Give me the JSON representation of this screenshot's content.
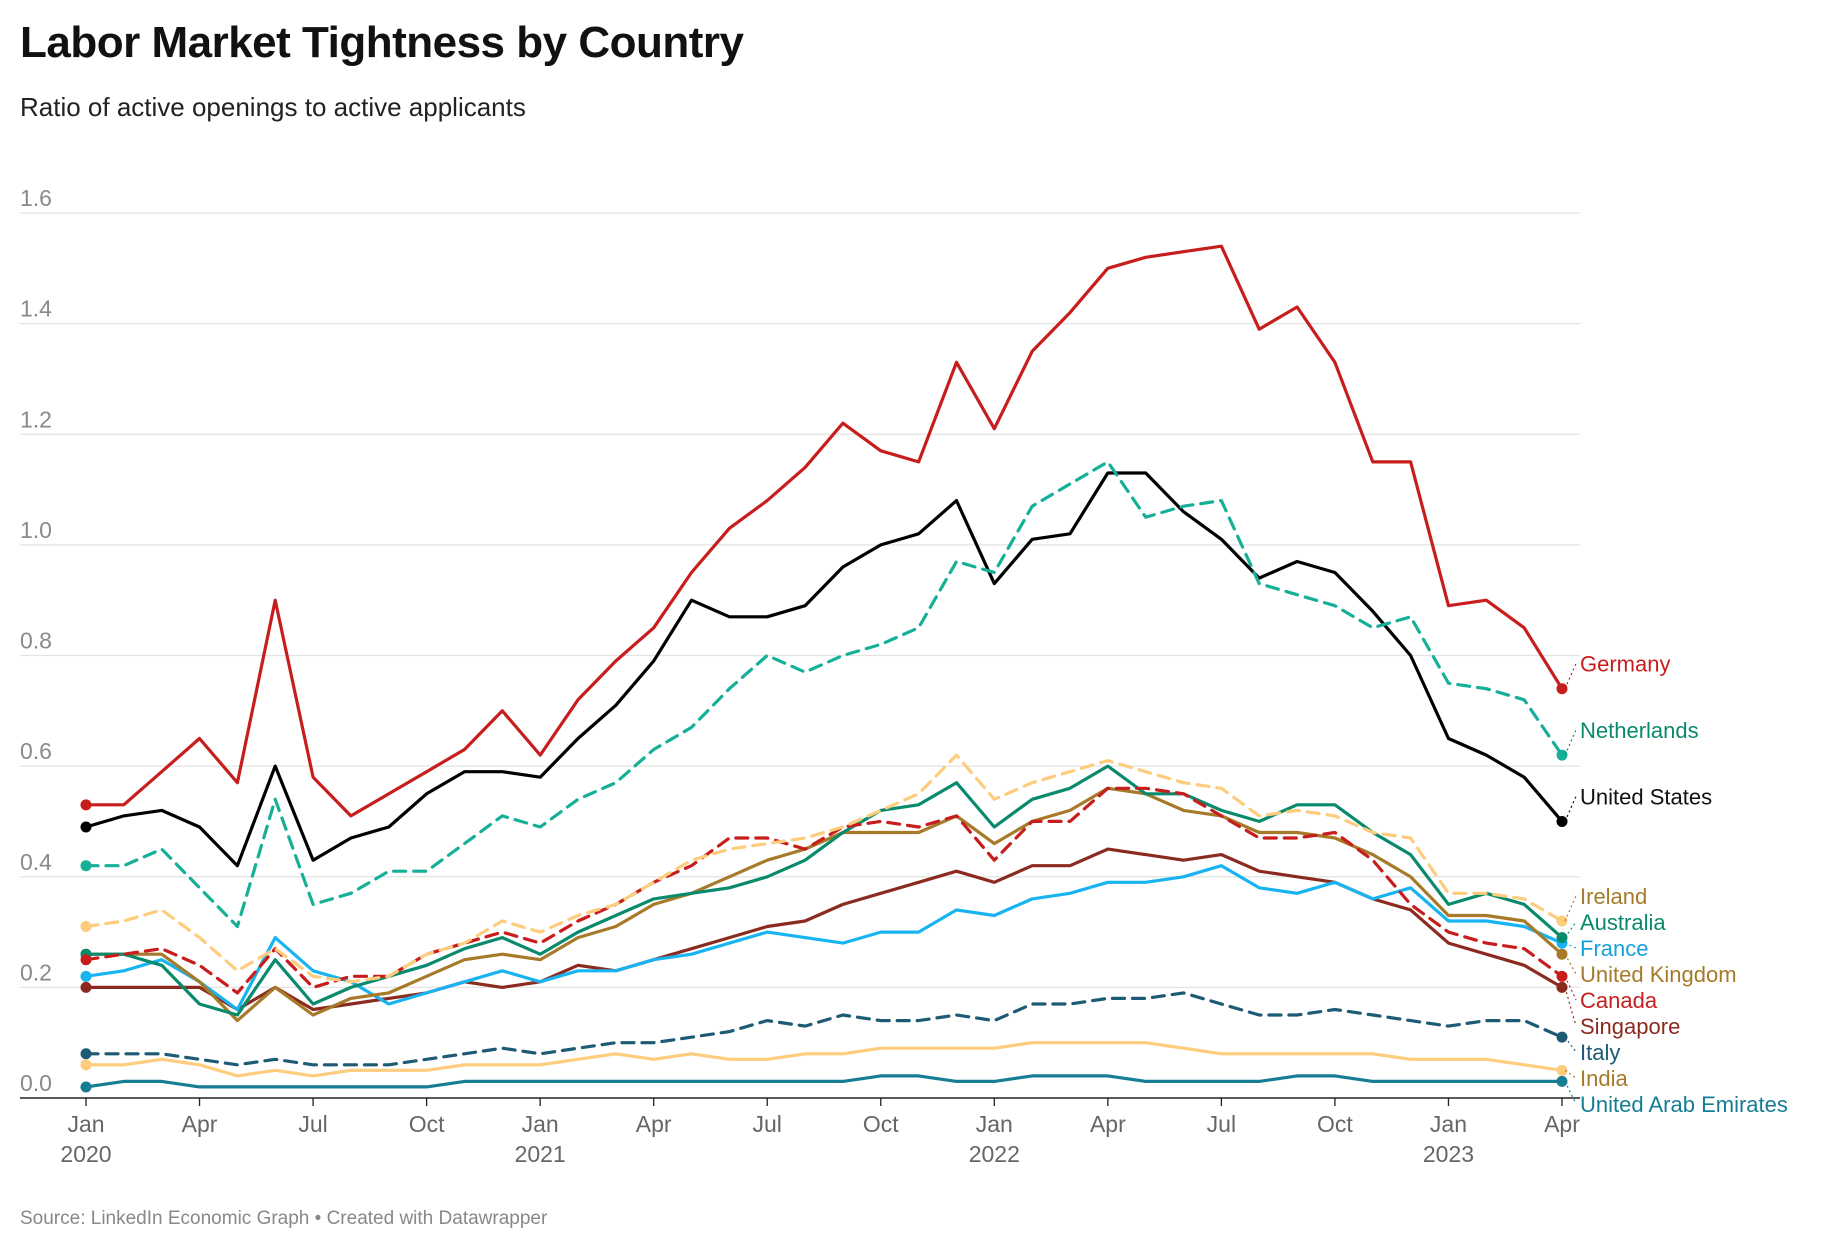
{
  "title": "Labor Market Tightness by Country",
  "subtitle": "Ratio of active openings to active applicants",
  "source": "Source: LinkedIn Economic Graph • Created with Datawrapper",
  "chart_data": {
    "type": "line",
    "title": "Labor Market Tightness by Country",
    "subtitle": "Ratio of active openings to active applicants",
    "xlabel": "",
    "ylabel": "",
    "ylim": [
      0,
      1.6
    ],
    "yticks": [
      0.0,
      0.2,
      0.4,
      0.6,
      0.8,
      1.0,
      1.2,
      1.4,
      1.6
    ],
    "ytick_labels": [
      "0.0",
      "0.2",
      "0.4",
      "0.6",
      "0.8",
      "1.0",
      "1.2",
      "1.4",
      "1.6"
    ],
    "grid": "horizontal",
    "x_range": [
      "2020-01",
      "2023-04"
    ],
    "x": [
      "2020-01",
      "2020-02",
      "2020-03",
      "2020-04",
      "2020-05",
      "2020-06",
      "2020-07",
      "2020-08",
      "2020-09",
      "2020-10",
      "2020-11",
      "2020-12",
      "2021-01",
      "2021-02",
      "2021-03",
      "2021-04",
      "2021-05",
      "2021-06",
      "2021-07",
      "2021-08",
      "2021-09",
      "2021-10",
      "2021-11",
      "2021-12",
      "2022-01",
      "2022-02",
      "2022-03",
      "2022-04",
      "2022-05",
      "2022-06",
      "2022-07",
      "2022-08",
      "2022-09",
      "2022-10",
      "2022-11",
      "2022-12",
      "2023-01",
      "2023-02",
      "2023-03",
      "2023-04"
    ],
    "xticks": [
      {
        "month": "Jan",
        "year": "2020"
      },
      {
        "month": "Apr",
        "year": ""
      },
      {
        "month": "Jul",
        "year": ""
      },
      {
        "month": "Oct",
        "year": ""
      },
      {
        "month": "Jan",
        "year": "2021"
      },
      {
        "month": "Apr",
        "year": ""
      },
      {
        "month": "Jul",
        "year": ""
      },
      {
        "month": "Oct",
        "year": ""
      },
      {
        "month": "Jan",
        "year": "2022"
      },
      {
        "month": "Apr",
        "year": ""
      },
      {
        "month": "Jul",
        "year": ""
      },
      {
        "month": "Oct",
        "year": ""
      },
      {
        "month": "Jan",
        "year": "2023"
      },
      {
        "month": "Apr",
        "year": ""
      }
    ],
    "xtick_index": [
      0,
      3,
      6,
      9,
      12,
      15,
      18,
      21,
      24,
      27,
      30,
      33,
      36,
      39
    ],
    "legend": "direct labels at right end of lines",
    "series": [
      {
        "name": "Germany",
        "color": "#c71e1d",
        "dashed": false,
        "width": 3.2,
        "values": [
          0.53,
          0.53,
          0.59,
          0.65,
          0.57,
          0.9,
          0.58,
          0.51,
          0.55,
          0.59,
          0.63,
          0.7,
          0.62,
          0.72,
          0.79,
          0.85,
          0.95,
          1.03,
          1.08,
          1.14,
          1.22,
          1.17,
          1.15,
          1.33,
          1.21,
          1.35,
          1.42,
          1.5,
          1.52,
          1.53,
          1.54,
          1.39,
          1.43,
          1.33,
          1.15,
          1.15,
          0.89,
          0.9,
          0.85,
          0.74
        ]
      },
      {
        "name": "Netherlands",
        "color": "#15b097",
        "dashed": true,
        "width": 3.2,
        "values": [
          0.42,
          0.42,
          0.45,
          0.38,
          0.31,
          0.54,
          0.35,
          0.37,
          0.41,
          0.41,
          0.46,
          0.51,
          0.49,
          0.54,
          0.57,
          0.63,
          0.67,
          0.74,
          0.8,
          0.77,
          0.8,
          0.82,
          0.85,
          0.97,
          0.95,
          1.07,
          1.11,
          1.15,
          1.05,
          1.07,
          1.08,
          0.93,
          0.91,
          0.89,
          0.85,
          0.87,
          0.75,
          0.74,
          0.72,
          0.62
        ]
      },
      {
        "name": "United States",
        "color": "#000000",
        "dashed": false,
        "width": 3.2,
        "values": [
          0.49,
          0.51,
          0.52,
          0.49,
          0.42,
          0.6,
          0.43,
          0.47,
          0.49,
          0.55,
          0.59,
          0.59,
          0.58,
          0.65,
          0.71,
          0.79,
          0.9,
          0.87,
          0.87,
          0.89,
          0.96,
          1.0,
          1.02,
          1.08,
          0.93,
          1.01,
          1.02,
          1.13,
          1.13,
          1.06,
          1.01,
          0.94,
          0.97,
          0.95,
          0.88,
          0.8,
          0.65,
          0.62,
          0.58,
          0.5
        ]
      },
      {
        "name": "Ireland",
        "color": "#fecc7d",
        "dashed": true,
        "width": 3.2,
        "values": [
          0.31,
          0.32,
          0.34,
          0.29,
          0.23,
          0.27,
          0.22,
          0.21,
          0.22,
          0.26,
          0.28,
          0.32,
          0.3,
          0.33,
          0.35,
          0.39,
          0.43,
          0.45,
          0.46,
          0.47,
          0.49,
          0.52,
          0.55,
          0.62,
          0.54,
          0.57,
          0.59,
          0.61,
          0.59,
          0.57,
          0.56,
          0.51,
          0.52,
          0.51,
          0.48,
          0.47,
          0.37,
          0.37,
          0.36,
          0.32
        ]
      },
      {
        "name": "Canada",
        "color": "#c71e1d",
        "dashed": true,
        "width": 3.2,
        "values": [
          0.25,
          0.26,
          0.27,
          0.24,
          0.19,
          0.27,
          0.2,
          0.22,
          0.22,
          0.26,
          0.28,
          0.3,
          0.28,
          0.32,
          0.35,
          0.39,
          0.42,
          0.47,
          0.47,
          0.45,
          0.49,
          0.5,
          0.49,
          0.51,
          0.43,
          0.5,
          0.5,
          0.56,
          0.56,
          0.55,
          0.51,
          0.47,
          0.47,
          0.48,
          0.43,
          0.35,
          0.3,
          0.28,
          0.27,
          0.22
        ]
      },
      {
        "name": "Australia",
        "color": "#0a8a6c",
        "dashed": false,
        "width": 3.2,
        "values": [
          0.26,
          0.26,
          0.24,
          0.17,
          0.15,
          0.25,
          0.17,
          0.2,
          0.22,
          0.24,
          0.27,
          0.29,
          0.26,
          0.3,
          0.33,
          0.36,
          0.37,
          0.38,
          0.4,
          0.43,
          0.48,
          0.52,
          0.53,
          0.57,
          0.49,
          0.54,
          0.56,
          0.6,
          0.55,
          0.55,
          0.52,
          0.5,
          0.53,
          0.53,
          0.48,
          0.44,
          0.35,
          0.37,
          0.35,
          0.29
        ]
      },
      {
        "name": "United Kingdom",
        "color": "#a77a2a",
        "dashed": false,
        "width": 3.2,
        "values": [
          0.26,
          0.26,
          0.26,
          0.21,
          0.14,
          0.2,
          0.15,
          0.18,
          0.19,
          0.22,
          0.25,
          0.26,
          0.25,
          0.29,
          0.31,
          0.35,
          0.37,
          0.4,
          0.43,
          0.45,
          0.48,
          0.48,
          0.48,
          0.51,
          0.46,
          0.5,
          0.52,
          0.56,
          0.55,
          0.52,
          0.51,
          0.48,
          0.48,
          0.47,
          0.44,
          0.4,
          0.33,
          0.33,
          0.32,
          0.26
        ]
      },
      {
        "name": "France",
        "color": "#18b4f2",
        "dashed": false,
        "width": 3.2,
        "values": [
          0.22,
          0.23,
          0.25,
          0.21,
          0.16,
          0.29,
          0.23,
          0.21,
          0.17,
          0.19,
          0.21,
          0.23,
          0.21,
          0.23,
          0.23,
          0.25,
          0.26,
          0.28,
          0.3,
          0.29,
          0.28,
          0.3,
          0.3,
          0.34,
          0.33,
          0.36,
          0.37,
          0.39,
          0.39,
          0.4,
          0.42,
          0.38,
          0.37,
          0.39,
          0.36,
          0.38,
          0.32,
          0.32,
          0.31,
          0.28
        ]
      },
      {
        "name": "Singapore",
        "color": "#8b2a1f",
        "dashed": false,
        "width": 3.2,
        "values": [
          0.2,
          0.2,
          0.2,
          0.2,
          0.16,
          0.2,
          0.16,
          0.17,
          0.18,
          0.19,
          0.21,
          0.2,
          0.21,
          0.24,
          0.23,
          0.25,
          0.27,
          0.29,
          0.31,
          0.32,
          0.35,
          0.37,
          0.39,
          0.41,
          0.39,
          0.42,
          0.42,
          0.45,
          0.44,
          0.43,
          0.44,
          0.41,
          0.4,
          0.39,
          0.36,
          0.34,
          0.28,
          0.26,
          0.24,
          0.2
        ]
      },
      {
        "name": "Italy",
        "color": "#1d5b74",
        "dashed": true,
        "width": 3.2,
        "values": [
          0.08,
          0.08,
          0.08,
          0.07,
          0.06,
          0.07,
          0.06,
          0.06,
          0.06,
          0.07,
          0.08,
          0.09,
          0.08,
          0.09,
          0.1,
          0.1,
          0.11,
          0.12,
          0.14,
          0.13,
          0.15,
          0.14,
          0.14,
          0.15,
          0.14,
          0.17,
          0.17,
          0.18,
          0.18,
          0.19,
          0.17,
          0.15,
          0.15,
          0.16,
          0.15,
          0.14,
          0.13,
          0.14,
          0.14,
          0.11
        ]
      },
      {
        "name": "India",
        "color": "#fecc7d",
        "dashed": false,
        "width": 3.2,
        "values": [
          0.06,
          0.06,
          0.07,
          0.06,
          0.04,
          0.05,
          0.04,
          0.05,
          0.05,
          0.05,
          0.06,
          0.06,
          0.06,
          0.07,
          0.08,
          0.07,
          0.08,
          0.07,
          0.07,
          0.08,
          0.08,
          0.09,
          0.09,
          0.09,
          0.09,
          0.1,
          0.1,
          0.1,
          0.1,
          0.09,
          0.08,
          0.08,
          0.08,
          0.08,
          0.08,
          0.07,
          0.07,
          0.07,
          0.06,
          0.05
        ]
      },
      {
        "name": "United Arab Emirates",
        "color": "#167d95",
        "dashed": false,
        "width": 3.2,
        "values": [
          0.02,
          0.03,
          0.03,
          0.02,
          0.02,
          0.02,
          0.02,
          0.02,
          0.02,
          0.02,
          0.03,
          0.03,
          0.03,
          0.03,
          0.03,
          0.03,
          0.03,
          0.03,
          0.03,
          0.03,
          0.03,
          0.04,
          0.04,
          0.03,
          0.03,
          0.04,
          0.04,
          0.04,
          0.03,
          0.03,
          0.03,
          0.03,
          0.04,
          0.04,
          0.03,
          0.03,
          0.03,
          0.03,
          0.03,
          0.03
        ]
      }
    ],
    "labels": [
      {
        "series": "Germany",
        "text": "Germany",
        "color": "#c71e1d"
      },
      {
        "series": "Netherlands",
        "text": "Netherlands",
        "color": "#0a8a6c"
      },
      {
        "series": "United States",
        "text": "United States",
        "color": "#111111"
      },
      {
        "series": "Australia",
        "text": "Australia",
        "color": "#0a8a6c"
      },
      {
        "series": "Ireland",
        "text": "Ireland",
        "color": "#a77a2a"
      },
      {
        "series": "France",
        "text": "France",
        "color": "#18a0dc"
      },
      {
        "series": "United Kingdom",
        "text": "United Kingdom",
        "color": "#a77a2a"
      },
      {
        "series": "Canada",
        "text": "Canada",
        "color": "#c71e1d"
      },
      {
        "series": "Singapore",
        "text": "Singapore",
        "color": "#8b2a1f"
      },
      {
        "series": "Italy",
        "text": "Italy",
        "color": "#1d5b74"
      },
      {
        "series": "India",
        "text": "India",
        "color": "#a77a2a"
      },
      {
        "series": "United Arab Emirates",
        "text": "United Arab Emirates",
        "color": "#167d95"
      }
    ]
  }
}
